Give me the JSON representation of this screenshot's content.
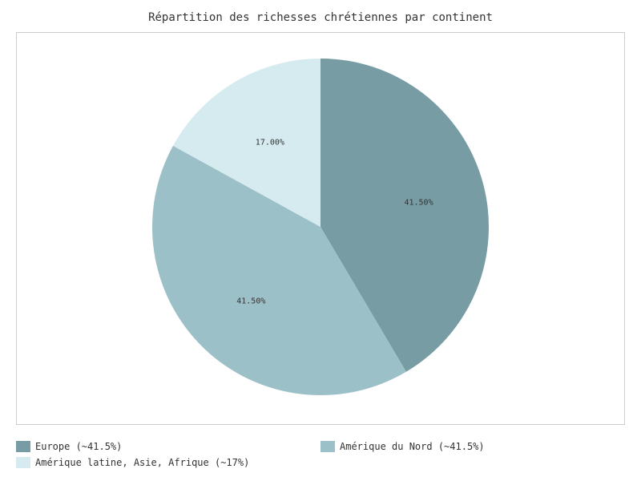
{
  "chart": {
    "type": "pie",
    "title": "Répartition des richesses chrétiennes par continent",
    "title_fontsize": 14,
    "background_color": "#ffffff",
    "plot_border_color": "#cccccc",
    "pie_radius": 210,
    "start_angle_deg": 90,
    "direction": "clockwise",
    "label_fontsize": 10,
    "label_color": "#333333",
    "slices": [
      {
        "label": "Europe (~41.5%)",
        "value": 41.5,
        "display": "41.50%",
        "color": "#789ca3"
      },
      {
        "label": "Amérique du Nord (~41.5%)",
        "value": 41.5,
        "display": "41.50%",
        "color": "#9cc0c7"
      },
      {
        "label": "Amérique latine, Asie, Afrique (~17%)",
        "value": 17.0,
        "display": "17.00%",
        "color": "#d5ebf0"
      }
    ],
    "legend": {
      "position": "bottom",
      "fontsize": 12,
      "text_color": "#333333",
      "swatch_border": "none"
    }
  }
}
